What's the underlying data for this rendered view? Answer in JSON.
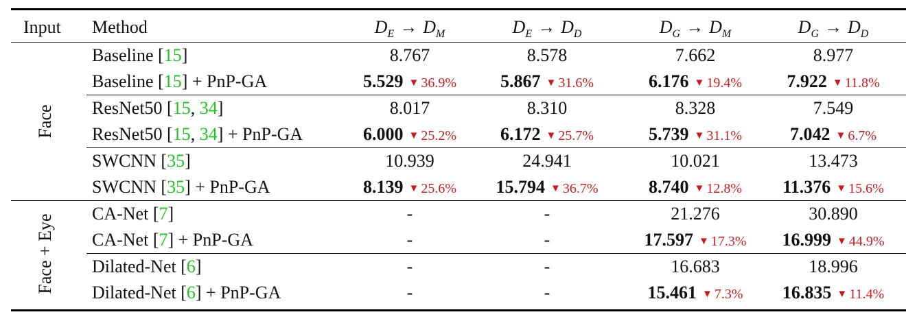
{
  "table": {
    "headers": {
      "input": "Input",
      "method": "Method",
      "columns": [
        {
          "from": "D",
          "from_sub": "E",
          "arrow": "→",
          "to": "D",
          "to_sub": "M"
        },
        {
          "from": "D",
          "from_sub": "E",
          "arrow": "→",
          "to": "D",
          "to_sub": "D"
        },
        {
          "from": "D",
          "from_sub": "G",
          "arrow": "→",
          "to": "D",
          "to_sub": "M"
        },
        {
          "from": "D",
          "from_sub": "G",
          "arrow": "→",
          "to": "D",
          "to_sub": "D"
        }
      ]
    },
    "groups": [
      {
        "label": "Face"
      },
      {
        "label": "Face + Eye"
      }
    ],
    "rows": [
      {
        "method": "Baseline [",
        "refs": [
          "15"
        ],
        "seps": [],
        "suffix": "]",
        "values": [
          {
            "v": "8.767",
            "bold": false,
            "d": ""
          },
          {
            "v": "8.578",
            "bold": false,
            "d": ""
          },
          {
            "v": "7.662",
            "bold": false,
            "d": ""
          },
          {
            "v": "8.977",
            "bold": false,
            "d": ""
          }
        ]
      },
      {
        "method": "Baseline [",
        "refs": [
          "15"
        ],
        "seps": [],
        "suffix": "] + PnP-GA",
        "values": [
          {
            "v": "5.529",
            "bold": true,
            "d": "36.9%"
          },
          {
            "v": "5.867",
            "bold": true,
            "d": "31.6%"
          },
          {
            "v": "6.176",
            "bold": true,
            "d": "19.4%"
          },
          {
            "v": "7.922",
            "bold": true,
            "d": "11.8%"
          }
        ]
      },
      {
        "method": "ResNet50 [",
        "refs": [
          "15",
          "34"
        ],
        "seps": [
          ", "
        ],
        "suffix": "]",
        "values": [
          {
            "v": "8.017",
            "bold": false,
            "d": ""
          },
          {
            "v": "8.310",
            "bold": false,
            "d": ""
          },
          {
            "v": "8.328",
            "bold": false,
            "d": ""
          },
          {
            "v": "7.549",
            "bold": false,
            "d": ""
          }
        ]
      },
      {
        "method": "ResNet50 [",
        "refs": [
          "15",
          "34"
        ],
        "seps": [
          ", "
        ],
        "suffix": "] + PnP-GA",
        "values": [
          {
            "v": "6.000",
            "bold": true,
            "d": "25.2%"
          },
          {
            "v": "6.172",
            "bold": true,
            "d": "25.7%"
          },
          {
            "v": "5.739",
            "bold": true,
            "d": "31.1%"
          },
          {
            "v": "7.042",
            "bold": true,
            "d": "6.7%"
          }
        ]
      },
      {
        "method": "SWCNN [",
        "refs": [
          "35"
        ],
        "seps": [],
        "suffix": "]",
        "values": [
          {
            "v": "10.939",
            "bold": false,
            "d": ""
          },
          {
            "v": "24.941",
            "bold": false,
            "d": ""
          },
          {
            "v": "10.021",
            "bold": false,
            "d": ""
          },
          {
            "v": "13.473",
            "bold": false,
            "d": ""
          }
        ]
      },
      {
        "method": "SWCNN [",
        "refs": [
          "35"
        ],
        "seps": [],
        "suffix": "] + PnP-GA",
        "values": [
          {
            "v": "8.139",
            "bold": true,
            "d": "25.6%"
          },
          {
            "v": "15.794",
            "bold": true,
            "d": "36.7%"
          },
          {
            "v": "8.740",
            "bold": true,
            "d": "12.8%"
          },
          {
            "v": "11.376",
            "bold": true,
            "d": "15.6%"
          }
        ]
      },
      {
        "method": "CA-Net [",
        "refs": [
          "7"
        ],
        "seps": [],
        "suffix": "]",
        "values": [
          {
            "v": "-",
            "bold": false,
            "d": ""
          },
          {
            "v": "-",
            "bold": false,
            "d": ""
          },
          {
            "v": "21.276",
            "bold": false,
            "d": ""
          },
          {
            "v": "30.890",
            "bold": false,
            "d": ""
          }
        ]
      },
      {
        "method": "CA-Net [",
        "refs": [
          "7"
        ],
        "seps": [],
        "suffix": "] + PnP-GA",
        "values": [
          {
            "v": "-",
            "bold": false,
            "d": ""
          },
          {
            "v": "-",
            "bold": false,
            "d": ""
          },
          {
            "v": "17.597",
            "bold": true,
            "d": "17.3%"
          },
          {
            "v": "16.999",
            "bold": true,
            "d": "44.9%"
          }
        ]
      },
      {
        "method": "Dilated-Net [",
        "refs": [
          "6"
        ],
        "seps": [],
        "suffix": "]",
        "values": [
          {
            "v": "-",
            "bold": false,
            "d": ""
          },
          {
            "v": "-",
            "bold": false,
            "d": ""
          },
          {
            "v": "16.683",
            "bold": false,
            "d": ""
          },
          {
            "v": "18.996",
            "bold": false,
            "d": ""
          }
        ]
      },
      {
        "method": "Dilated-Net [",
        "refs": [
          "6"
        ],
        "seps": [],
        "suffix": "] + PnP-GA",
        "values": [
          {
            "v": "-",
            "bold": false,
            "d": ""
          },
          {
            "v": "-",
            "bold": false,
            "d": ""
          },
          {
            "v": "15.461",
            "bold": true,
            "d": "7.3%"
          },
          {
            "v": "16.835",
            "bold": true,
            "d": "11.4%"
          }
        ]
      }
    ],
    "delta_marker": "▼"
  }
}
